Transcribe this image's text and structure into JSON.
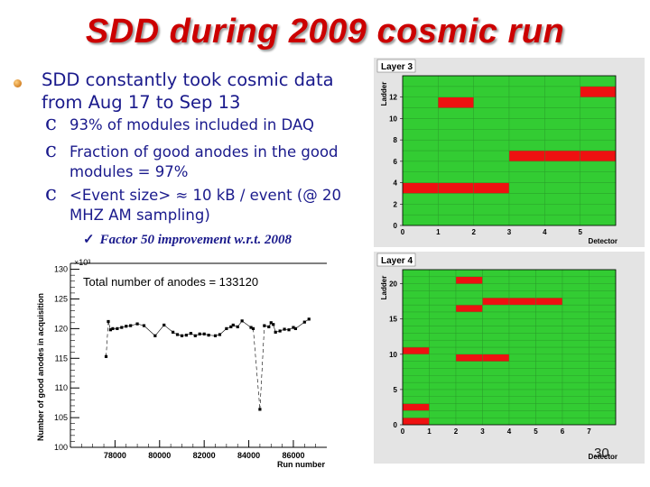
{
  "slide": {
    "title": "SDD during 2009 cosmic run",
    "main_bullet": "SDD constantly took cosmic data from Aug 17 to Sep 13",
    "sub_bullets": [
      "93% of modules included in DAQ",
      "Fraction of good anodes in the good modules = 97%",
      "<Event size> ≈ 10 kB / event (@ 20 MHZ AM sampling)"
    ],
    "check_item": "Factor 50 improvement w.r.t. 2008",
    "page_number": "30"
  },
  "chart_data": [
    {
      "type": "scatter",
      "title": "",
      "annotation": "Total number of anodes = 133120",
      "scale_label": "×10³",
      "xlabel": "Run number",
      "ylabel": "Number of good anodes in acquisition",
      "xlim": [
        76000,
        87500
      ],
      "ylim": [
        100,
        131
      ],
      "x_ticks": [
        "78000",
        "80000",
        "82000",
        "84000",
        "86000"
      ],
      "y_ticks": [
        "100",
        "105",
        "110",
        "115",
        "120",
        "125",
        "130"
      ],
      "reference_line_y": 133.1,
      "series": [
        {
          "x": [
            77600,
            77700,
            77800,
            77900,
            78100,
            78300,
            78500,
            78700,
            79000,
            79300,
            79800,
            80200,
            80600,
            80800,
            81000,
            81200,
            81400,
            81600,
            81800,
            82000,
            82200,
            82500,
            82700,
            83000,
            83200,
            83300,
            83500,
            83700,
            84100,
            84200,
            84500,
            84700,
            84900,
            85000,
            85100,
            85200,
            85400,
            85600,
            85800,
            86000,
            86100,
            86500,
            86700
          ],
          "y": [
            115.3,
            121.2,
            119.8,
            120.0,
            120.0,
            120.2,
            120.4,
            120.5,
            120.8,
            120.5,
            118.8,
            120.6,
            119.4,
            119.0,
            118.8,
            118.9,
            119.2,
            118.8,
            119.1,
            119.1,
            118.9,
            118.8,
            119.0,
            120.0,
            120.3,
            120.6,
            120.3,
            121.3,
            120.2,
            120.0,
            106.4,
            120.5,
            120.3,
            121.0,
            120.7,
            119.4,
            119.6,
            119.9,
            119.8,
            120.2,
            120.0,
            121.1,
            121.6
          ]
        }
      ]
    },
    {
      "type": "heatmap",
      "title": "Layer 3",
      "xlabel": "Detector",
      "ylabel": "Ladder",
      "x_ticks": [
        "0",
        "1",
        "2",
        "3",
        "4",
        "5"
      ],
      "y_ticks": [
        "0",
        "2",
        "4",
        "6",
        "8",
        "10",
        "12"
      ],
      "n_detectors": 6,
      "n_ladders": 14,
      "background_color": "#33cc33",
      "bad_color": "#ee1111",
      "bad_modules": [
        [
          0,
          3
        ],
        [
          1,
          3
        ],
        [
          2,
          3
        ],
        [
          1,
          11
        ],
        [
          3,
          6
        ],
        [
          4,
          6
        ],
        [
          5,
          6
        ],
        [
          5,
          12
        ]
      ]
    },
    {
      "type": "heatmap",
      "title": "Layer 4",
      "xlabel": "Detector",
      "ylabel": "Ladder",
      "x_ticks": [
        "0",
        "1",
        "2",
        "3",
        "4",
        "5",
        "6",
        "7"
      ],
      "y_ticks": [
        "0",
        "5",
        "10",
        "15",
        "20"
      ],
      "n_detectors": 8,
      "n_ladders": 22,
      "background_color": "#33cc33",
      "bad_color": "#ee1111",
      "bad_modules": [
        [
          2,
          20
        ],
        [
          3,
          17
        ],
        [
          4,
          17
        ],
        [
          5,
          17
        ],
        [
          2,
          16
        ],
        [
          0,
          10
        ],
        [
          2,
          9
        ],
        [
          3,
          9
        ],
        [
          0,
          2
        ],
        [
          0,
          0
        ]
      ]
    }
  ]
}
